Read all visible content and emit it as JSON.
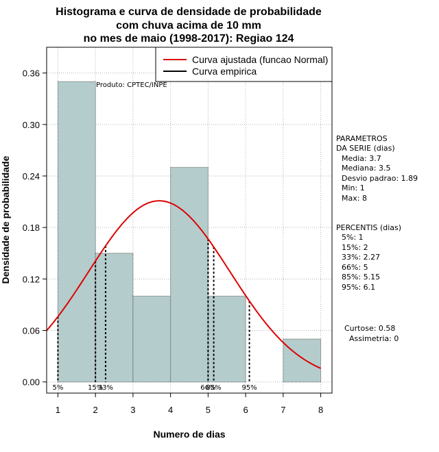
{
  "title_lines": [
    "Histograma e curva de densidade de probabilidade",
    "com chuva acima de 10 mm",
    "no mes de maio (1998-2017): Regiao 124"
  ],
  "chart_data": {
    "type": "bar",
    "xlabel": "Numero de dias",
    "ylabel": "Densidade de probabilidade",
    "xlim": [
      0.7,
      8.3
    ],
    "ylim": [
      -0.013,
      0.39
    ],
    "x_ticks": [
      1,
      2,
      3,
      4,
      5,
      6,
      7,
      8
    ],
    "y_ticks": [
      0.0,
      0.06,
      0.12,
      0.18,
      0.24,
      0.3,
      0.36
    ],
    "y_tick_labels": [
      "0.00",
      "0.06",
      "0.12",
      "0.18",
      "0.24",
      "0.30",
      "0.36"
    ],
    "bins": [
      {
        "x0": 1,
        "x1": 2,
        "density": 0.35
      },
      {
        "x0": 2,
        "x1": 3,
        "density": 0.15
      },
      {
        "x0": 3,
        "x1": 4,
        "density": 0.1
      },
      {
        "x0": 4,
        "x1": 5,
        "density": 0.25
      },
      {
        "x0": 5,
        "x1": 6,
        "density": 0.1
      },
      {
        "x0": 6,
        "x1": 7,
        "density": 0.0
      },
      {
        "x0": 7,
        "x1": 8,
        "density": 0.05
      }
    ],
    "normal_fit": {
      "mean": 3.7,
      "sd": 1.89,
      "x_from": 0.7,
      "x_to": 8.0
    },
    "percentile_lines": [
      {
        "label": "5%",
        "x": 1
      },
      {
        "label": "15%",
        "x": 2
      },
      {
        "label": "33%",
        "x": 2.27
      },
      {
        "label": "66%",
        "x": 5
      },
      {
        "label": "85%",
        "x": 5.15
      },
      {
        "label": "95%",
        "x": 6.1
      }
    ],
    "legend": [
      {
        "label": "Curva ajustada (funcao Normal)",
        "color": "#dd0000"
      },
      {
        "label": "Curva empirica",
        "color": "#000000"
      }
    ],
    "product_note": "Produto: CPTEC/INPE",
    "colors": {
      "bar_fill": "#b4cccc",
      "curve": "#dd0000",
      "grid": "#b0b0b0"
    }
  },
  "parameters": {
    "heading": [
      "PARAMETROS",
      "DA SERIE (dias)"
    ],
    "lines": [
      "Media: 3.7",
      "Mediana: 3.5",
      "Desvio padrao: 1.89",
      "Min: 1",
      "Max: 8"
    ]
  },
  "percentiles": {
    "heading": "PERCENTIS (dias)",
    "lines": [
      "5%: 1",
      "15%: 2",
      "33%: 2.27",
      "66%: 5",
      "85%: 5.15",
      "95%: 6.1"
    ]
  },
  "shape": {
    "lines": [
      "Curtose: 0.58",
      "Assimetria: 0"
    ]
  }
}
